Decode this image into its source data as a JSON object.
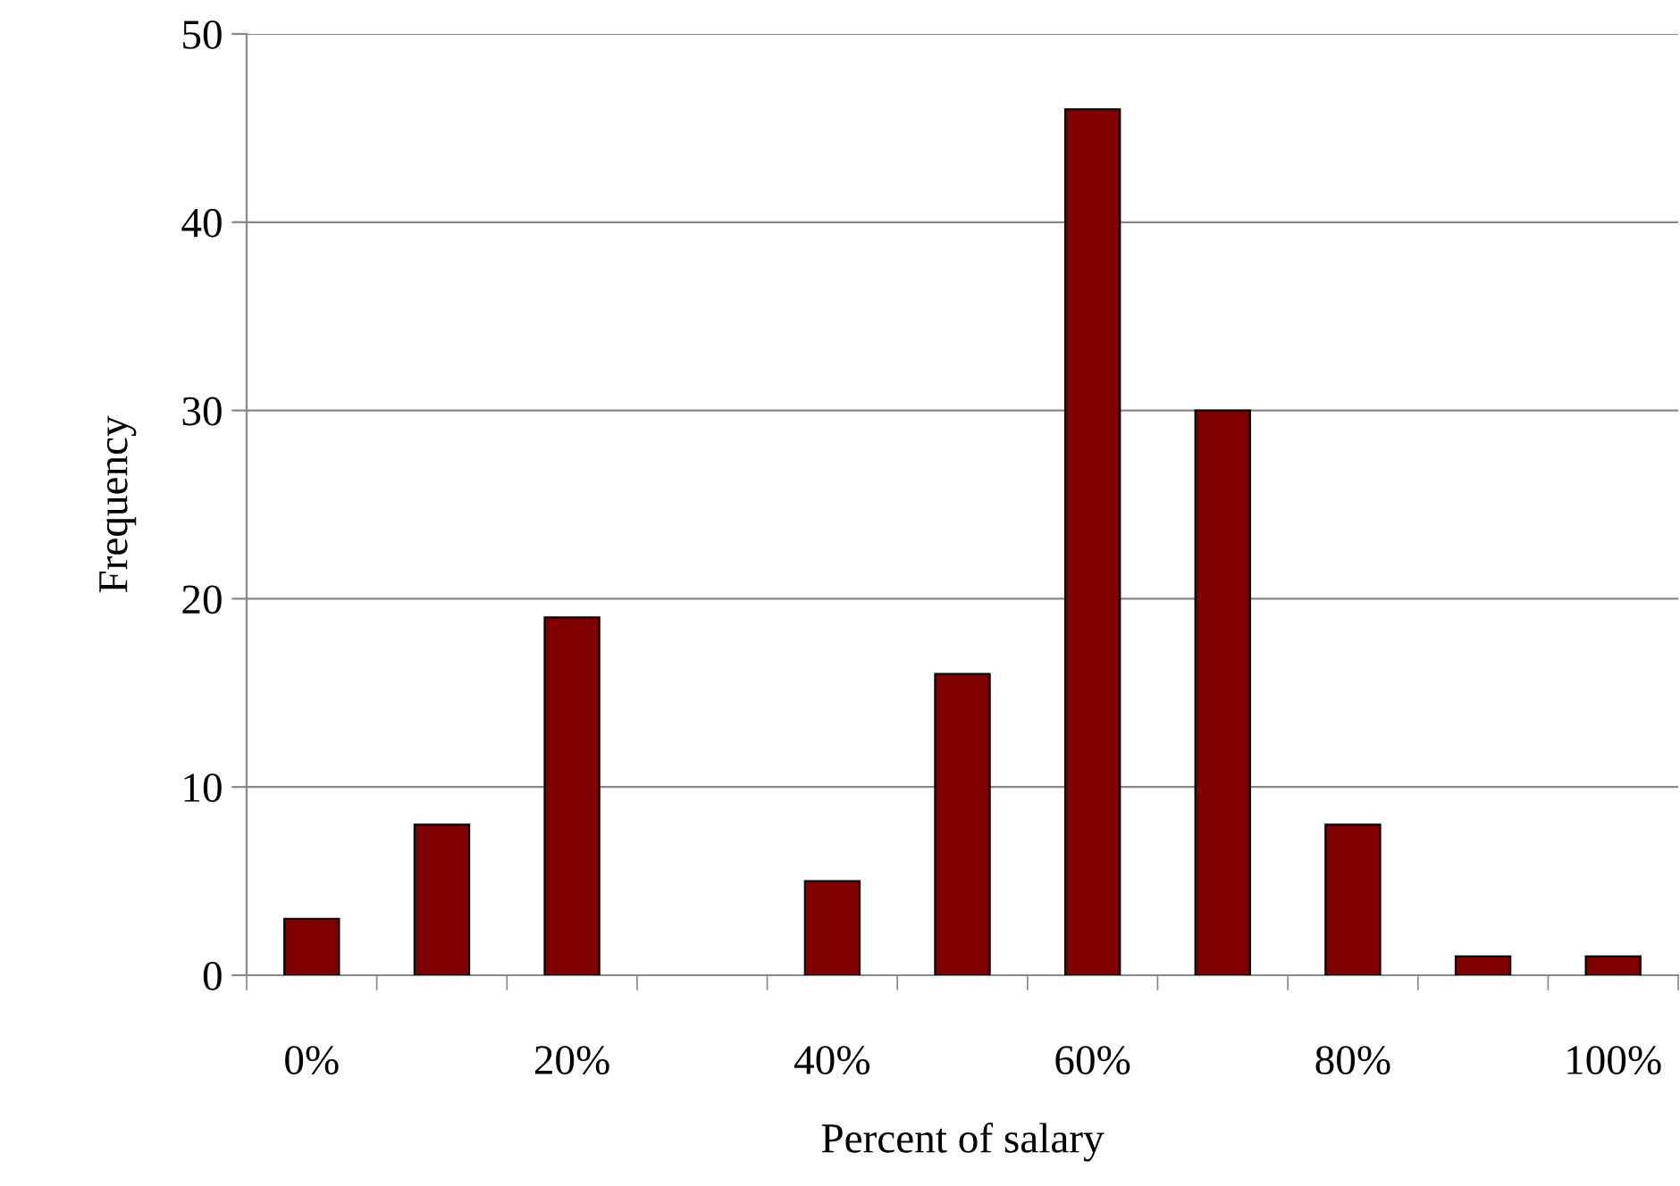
{
  "chart_data": {
    "type": "bar",
    "xlabel": "Percent of salary",
    "ylabel": "Frequency",
    "categories": [
      "0%",
      null,
      "20%",
      null,
      "40%",
      null,
      "60%",
      null,
      "80%",
      null,
      "100%"
    ],
    "values": [
      3,
      8,
      19,
      null,
      5,
      16,
      46,
      30,
      8,
      1,
      1
    ],
    "color": "#800000",
    "ylim": [
      0,
      50
    ],
    "yticks": [
      0,
      10,
      20,
      30,
      40,
      50
    ],
    "grid": "y",
    "legend": false
  }
}
